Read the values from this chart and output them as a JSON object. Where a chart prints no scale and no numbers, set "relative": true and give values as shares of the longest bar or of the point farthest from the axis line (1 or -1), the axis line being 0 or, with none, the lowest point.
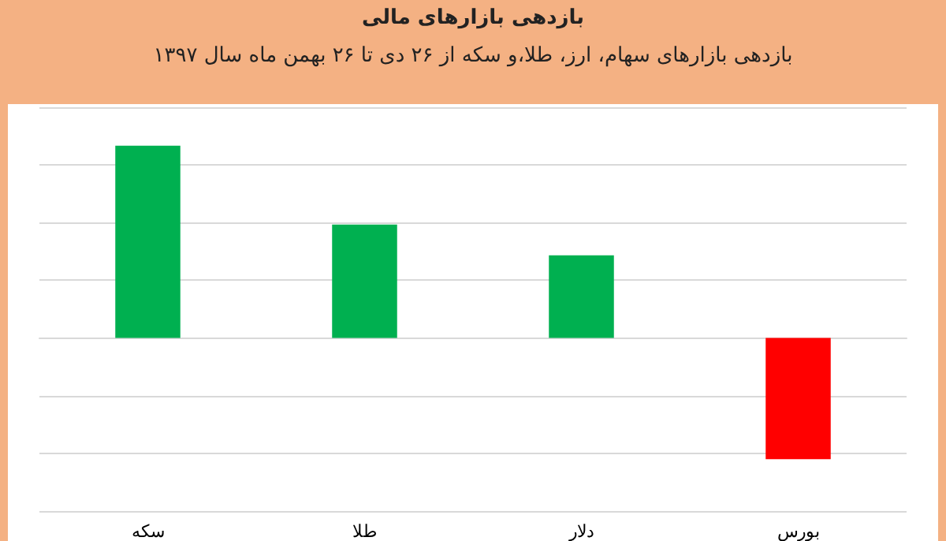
{
  "chart_data": {
    "type": "bar",
    "title": "بازدهی بازارهای مالی",
    "subtitle": "بازدهی بازارهای سهام، ارز، طلا،و سکه از ۲۶ دی تا ۲۶ بهمن ماه سال ۱۳۹۷",
    "categories": [
      "سکه",
      "طلا",
      "دلار",
      "بورس"
    ],
    "values": [
      1,
      0.59,
      0.43,
      -0.63
    ],
    "colors": [
      "#00b050",
      "#00b050",
      "#00b050",
      "#ff0000"
    ],
    "relative": true,
    "grid": "y"
  }
}
